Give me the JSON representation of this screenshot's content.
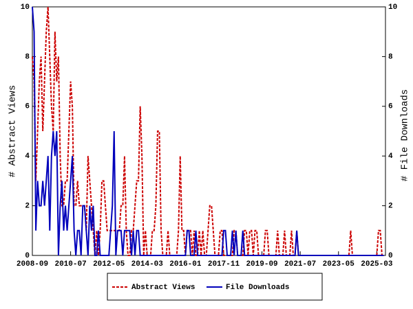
{
  "chart_data": {
    "type": "line",
    "x_label": "",
    "y_label": "# Abstract Views",
    "y2_label": "# File Downloads",
    "x": [
      "2008-09",
      "2008-10",
      "2008-11",
      "2008-12",
      "2009-01",
      "2009-02",
      "2009-03",
      "2009-04",
      "2009-05",
      "2009-06",
      "2009-07",
      "2009-08",
      "2009-09",
      "2009-10",
      "2009-11",
      "2009-12",
      "2010-01",
      "2010-02",
      "2010-03",
      "2010-04",
      "2010-05",
      "2010-06",
      "2010-07",
      "2010-08",
      "2010-09",
      "2010-10",
      "2010-11",
      "2010-12",
      "2011-01",
      "2011-02",
      "2011-03",
      "2011-04",
      "2011-05",
      "2011-06",
      "2011-07",
      "2011-08",
      "2011-09",
      "2011-10",
      "2011-11",
      "2011-12",
      "2012-01",
      "2012-02",
      "2012-03",
      "2012-04",
      "2012-05",
      "2012-06",
      "2012-07",
      "2012-08",
      "2012-09",
      "2012-10",
      "2012-11",
      "2012-12",
      "2013-01",
      "2013-02",
      "2013-03",
      "2013-04",
      "2013-05",
      "2013-06",
      "2013-07",
      "2013-08",
      "2013-09",
      "2013-10",
      "2013-11",
      "2013-12",
      "2014-01",
      "2014-02",
      "2014-03",
      "2014-04",
      "2014-05",
      "2014-06",
      "2014-07",
      "2014-08",
      "2014-09",
      "2014-10",
      "2014-11",
      "2014-12",
      "2015-01",
      "2015-02",
      "2015-03",
      "2015-04",
      "2015-05",
      "2015-06",
      "2015-07",
      "2015-08",
      "2015-09",
      "2015-10",
      "2015-11",
      "2015-12",
      "2016-01",
      "2016-02",
      "2016-03",
      "2016-04",
      "2016-05",
      "2016-06",
      "2016-07",
      "2016-08",
      "2016-09",
      "2016-10",
      "2016-11",
      "2016-12",
      "2017-01",
      "2017-02",
      "2017-03",
      "2017-04",
      "2017-05",
      "2017-06",
      "2017-07",
      "2017-08",
      "2017-09",
      "2017-10",
      "2017-11",
      "2017-12",
      "2018-01",
      "2018-02",
      "2018-03",
      "2018-04",
      "2018-05",
      "2018-06",
      "2018-07",
      "2018-08",
      "2018-09",
      "2018-10",
      "2018-11",
      "2018-12",
      "2019-01",
      "2019-02",
      "2019-03",
      "2019-04",
      "2019-05",
      "2019-06",
      "2019-07",
      "2019-08",
      "2019-09",
      "2019-10",
      "2019-11",
      "2019-12",
      "2020-01",
      "2020-02",
      "2020-03",
      "2020-04",
      "2020-05",
      "2020-06",
      "2020-07",
      "2020-08",
      "2020-09",
      "2020-10",
      "2020-11",
      "2020-12",
      "2021-01",
      "2021-02",
      "2021-03",
      "2021-04",
      "2021-05",
      "2021-06",
      "2021-07",
      "2021-08",
      "2021-09",
      "2021-10",
      "2021-11",
      "2021-12",
      "2022-01",
      "2022-02",
      "2022-03",
      "2022-04",
      "2022-05",
      "2022-06",
      "2022-07",
      "2022-08",
      "2022-09",
      "2022-10",
      "2022-11",
      "2022-12",
      "2023-01",
      "2023-02",
      "2023-03",
      "2023-04",
      "2023-05",
      "2023-06",
      "2023-07",
      "2023-08",
      "2023-09",
      "2023-10",
      "2023-11",
      "2023-12",
      "2024-01",
      "2024-02",
      "2024-03",
      "2024-04",
      "2024-05",
      "2024-06",
      "2024-07",
      "2024-08",
      "2024-09",
      "2024-10",
      "2024-11",
      "2024-12",
      "2025-01",
      "2025-02",
      "2025-03",
      "2025-04",
      "2025-05",
      "2025-06",
      "2025-07"
    ],
    "xlim": [
      "2008-09",
      "2025-08"
    ],
    "xticks": [
      "2008-09",
      "2010-07",
      "2012-05",
      "2014-03",
      "2016-01",
      "2017-11",
      "2019-09",
      "2021-07",
      "2023-05",
      "2025-03"
    ],
    "ylim": [
      0,
      10
    ],
    "yticks": [
      0,
      2,
      4,
      6,
      8,
      10
    ],
    "y2lim": [
      0,
      10
    ],
    "y2ticks": [
      0,
      2,
      4,
      6,
      8,
      10
    ],
    "series": [
      {
        "name": "Abstract Views",
        "color": "#cc0000",
        "dashed": true,
        "values": [
          8,
          7,
          3,
          5,
          7,
          8,
          5,
          7,
          9,
          10,
          8,
          6,
          5,
          9,
          7,
          8,
          4,
          2,
          2,
          3,
          3,
          5,
          7,
          6,
          2,
          2,
          3,
          2,
          2,
          2,
          2,
          1,
          4,
          3,
          2,
          1,
          0,
          1,
          0,
          1,
          3,
          3,
          2,
          1,
          1,
          1,
          1,
          1,
          1,
          1,
          1,
          2,
          2,
          4,
          1,
          0,
          0,
          1,
          1,
          2,
          3,
          3,
          6,
          4,
          0,
          1,
          0,
          0,
          0,
          1,
          1,
          2,
          5,
          5,
          1,
          0,
          0,
          0,
          1,
          0,
          0,
          0,
          0,
          0,
          1,
          4,
          1,
          1,
          0,
          1,
          1,
          1,
          0,
          1,
          0,
          0,
          1,
          0,
          1,
          0,
          0,
          1,
          2,
          2,
          1,
          0,
          0,
          0,
          1,
          1,
          0,
          0,
          0,
          0,
          0,
          0,
          1,
          1,
          0,
          0,
          0,
          0,
          1,
          1,
          0,
          1,
          1,
          0,
          1,
          1,
          0,
          0,
          0,
          0,
          1,
          1,
          0,
          0,
          0,
          0,
          0,
          1,
          0,
          0,
          0,
          1,
          0,
          0,
          0,
          1,
          0,
          0,
          1,
          0,
          0,
          0,
          0,
          0,
          0,
          0,
          0,
          0,
          0,
          0,
          0,
          0,
          0,
          0,
          0,
          0,
          0,
          0,
          0,
          0,
          0,
          0,
          0,
          0,
          0,
          0,
          0,
          0,
          0,
          1,
          0,
          0,
          0,
          0,
          0,
          0,
          0,
          0,
          0,
          0,
          0,
          0,
          0,
          0,
          0,
          1,
          1,
          0,
          0
        ]
      },
      {
        "name": "File Downloads",
        "color": "#0000bb",
        "dashed": false,
        "axis": "y2",
        "values": [
          10,
          9,
          1,
          3,
          2,
          2,
          3,
          2,
          3,
          4,
          1,
          4,
          5,
          4,
          5,
          0,
          2,
          3,
          1,
          2,
          1,
          2,
          3,
          4,
          1,
          0,
          1,
          1,
          0,
          2,
          2,
          1,
          0,
          2,
          1,
          2,
          0,
          0,
          1,
          0,
          0,
          0,
          0,
          0,
          0,
          1,
          2,
          5,
          0,
          1,
          1,
          1,
          0,
          1,
          1,
          1,
          1,
          0,
          1,
          0,
          1,
          1,
          0,
          0,
          0,
          0,
          0,
          0,
          0,
          0,
          0,
          0,
          0,
          0,
          0,
          0,
          0,
          0,
          0,
          0,
          0,
          0,
          0,
          0,
          0,
          0,
          0,
          0,
          0,
          1,
          1,
          0,
          0,
          0,
          1,
          0,
          0,
          0,
          0,
          0,
          0,
          0,
          0,
          0,
          0,
          0,
          0,
          0,
          0,
          0,
          1,
          1,
          0,
          0,
          0,
          1,
          0,
          1,
          0,
          0,
          0,
          1,
          0,
          0,
          0,
          0,
          0,
          0,
          0,
          0,
          0,
          0,
          0,
          0,
          0,
          0,
          0,
          0,
          0,
          0,
          0,
          0,
          0,
          0,
          0,
          0,
          0,
          0,
          0,
          0,
          0,
          0,
          1,
          0,
          0,
          0,
          0,
          0,
          0,
          0,
          0,
          0,
          0,
          0,
          0,
          0,
          0,
          0,
          0,
          0,
          0,
          0,
          0,
          0,
          0,
          0,
          0,
          0,
          0,
          0,
          0,
          0,
          0,
          0,
          0,
          0,
          0,
          0,
          0,
          0,
          0,
          0,
          0,
          0,
          0,
          0,
          0,
          0,
          0,
          0,
          0,
          0,
          0
        ]
      }
    ]
  }
}
